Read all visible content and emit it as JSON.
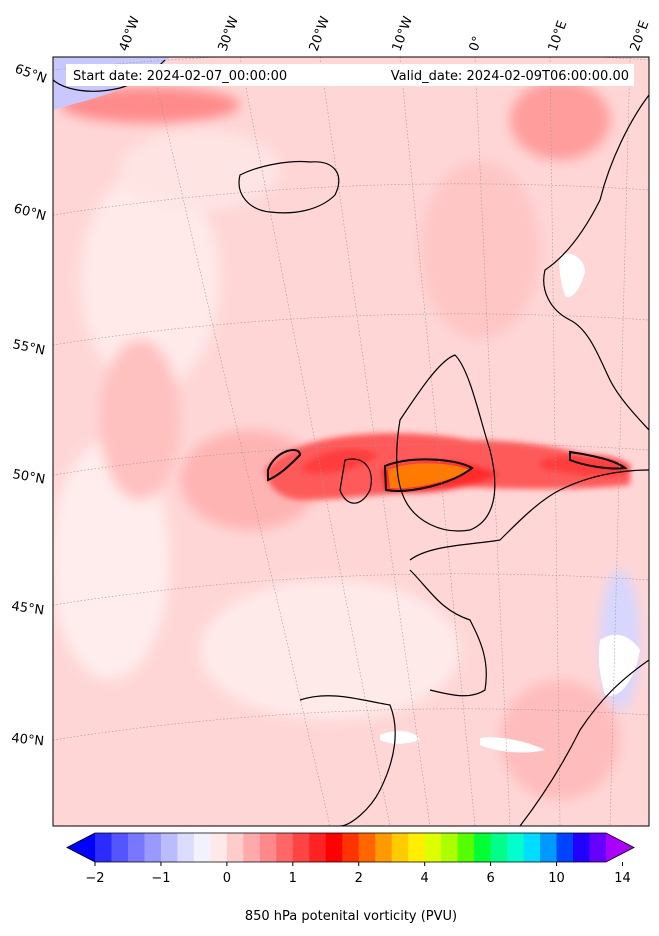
{
  "map": {
    "start_date": "Start date: 2024-02-07_00:00:00",
    "valid_date": "Valid_date: 2024-02-09T06:00:00.00",
    "lon_labels": [
      "40°W",
      "30°W",
      "20°W",
      "10°W",
      "0°",
      "10°E",
      "20°E"
    ],
    "lat_labels": [
      "65°N",
      "60°N",
      "55°N",
      "50°N",
      "45°N",
      "40°N"
    ]
  },
  "colorbar": {
    "label": "850 hPa potenital vorticity (PVU)",
    "ticks": [
      "−2",
      "−1",
      "0",
      "1",
      "2",
      "4",
      "6",
      "10",
      "14"
    ],
    "colors": [
      "#0000ff",
      "#2b2bff",
      "#5555ff",
      "#7777ff",
      "#9999ff",
      "#bbbbff",
      "#dcdcff",
      "#f2f2ff",
      "#ffe8e8",
      "#ffcccc",
      "#ffaaaa",
      "#ff8888",
      "#ff6666",
      "#ff4444",
      "#ff2222",
      "#ff0000",
      "#ff3300",
      "#ff6600",
      "#ff9900",
      "#ffcc00",
      "#ffee00",
      "#ddff00",
      "#aaff00",
      "#55ff00",
      "#00ff33",
      "#00ff88",
      "#00ffcc",
      "#00ddff",
      "#0099ff",
      "#0044ff",
      "#2200ff",
      "#6600ff",
      "#aa00ff"
    ]
  }
}
